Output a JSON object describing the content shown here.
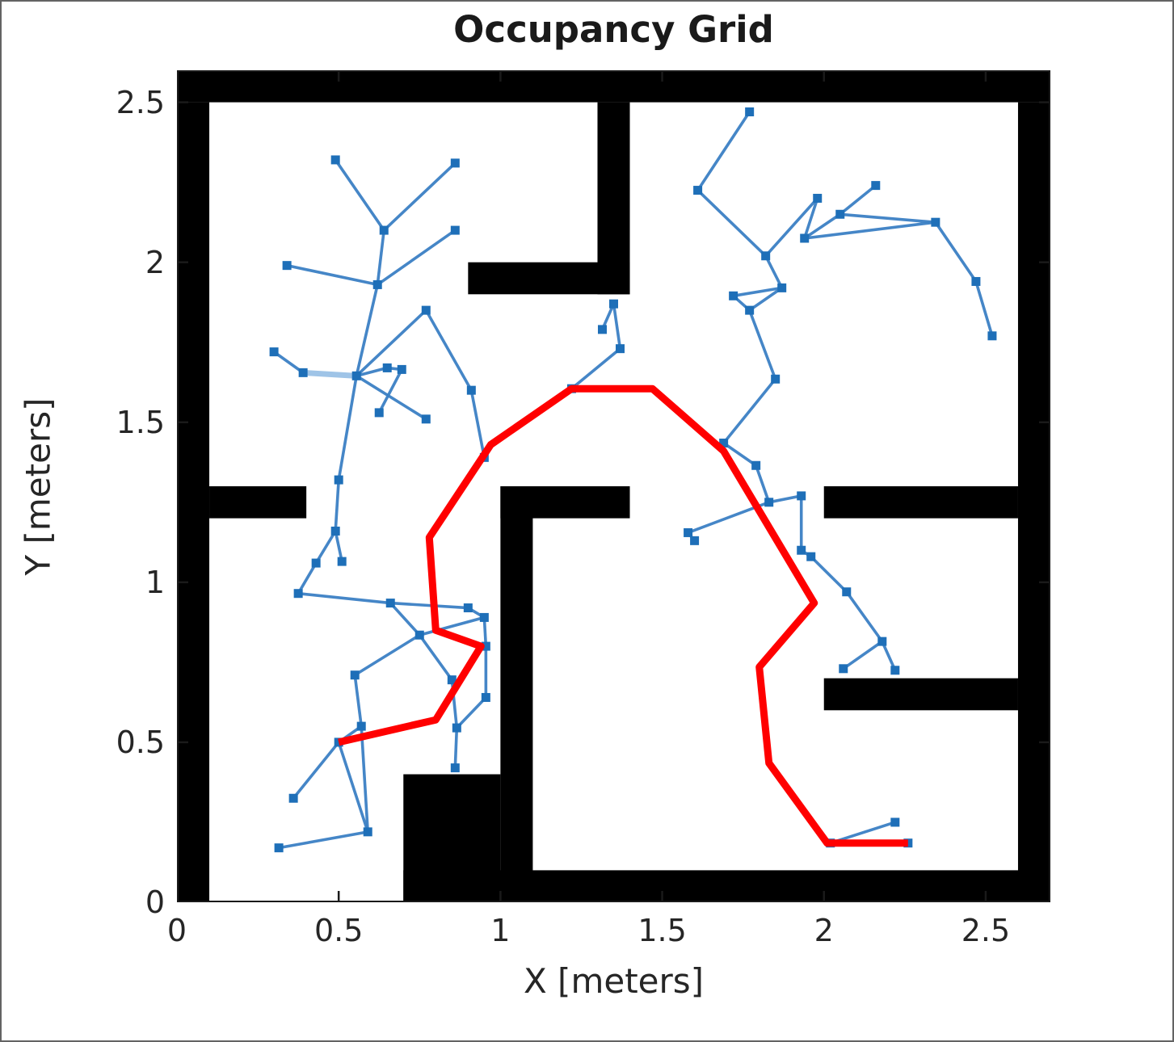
{
  "title": "Occupancy Grid",
  "xlabel": "X [meters]",
  "ylabel": "Y [meters]",
  "chart_data": {
    "type": "scatter",
    "subtype": "occupancy-grid-with-rrt-tree-and-path",
    "title": "Occupancy Grid",
    "xlabel": "X [meters]",
    "ylabel": "Y [meters]",
    "xlim": [
      0,
      2.7
    ],
    "ylim": [
      0,
      2.6
    ],
    "x_ticks": [
      0,
      0.5,
      1,
      1.5,
      2,
      2.5
    ],
    "x_tick_labels": [
      "0",
      "0.5",
      "1",
      "1.5",
      "2",
      "2.5"
    ],
    "y_ticks": [
      0,
      0.5,
      1,
      1.5,
      2,
      2.5
    ],
    "y_tick_labels": [
      "0",
      "0.5",
      "1",
      "1.5",
      "2",
      "2.5"
    ],
    "grid": false,
    "legend": "none",
    "colors": {
      "wall": "#000000",
      "background": "#ffffff",
      "tree_edge": "#3b80c4",
      "tree_edge_light": "#9fc4e7",
      "tree_marker": "#1e6fb8",
      "path": "#ff0000",
      "axis_text": "#262626",
      "axis_box": "#1a1a1a"
    },
    "walls_rect_xywh_meters": [
      [
        0.0,
        2.5,
        2.7,
        0.1
      ],
      [
        0.0,
        0.0,
        0.1,
        2.5
      ],
      [
        2.6,
        0.0,
        0.1,
        2.5
      ],
      [
        0.7,
        0.0,
        2.0,
        0.1
      ],
      [
        0.7,
        0.0,
        0.3,
        0.4
      ],
      [
        1.0,
        0.0,
        0.1,
        1.3
      ],
      [
        1.0,
        1.2,
        0.4,
        0.1
      ],
      [
        1.3,
        1.9,
        0.1,
        0.6
      ],
      [
        0.9,
        1.9,
        0.5,
        0.1
      ],
      [
        0.1,
        1.2,
        0.3,
        0.1
      ],
      [
        2.0,
        1.2,
        0.6,
        0.1
      ],
      [
        2.0,
        0.6,
        0.6,
        0.1
      ]
    ],
    "tree_nodes_xy_meters": [
      [
        0.49,
        2.32
      ],
      [
        0.86,
        2.31
      ],
      [
        0.64,
        2.1
      ],
      [
        0.86,
        2.1
      ],
      [
        0.34,
        1.99
      ],
      [
        0.62,
        1.93
      ],
      [
        0.77,
        1.85
      ],
      [
        0.3,
        1.72
      ],
      [
        0.39,
        1.655
      ],
      [
        0.555,
        1.645
      ],
      [
        0.65,
        1.67
      ],
      [
        0.695,
        1.665
      ],
      [
        0.91,
        1.6
      ],
      [
        0.625,
        1.53
      ],
      [
        0.77,
        1.51
      ],
      [
        0.5,
        1.32
      ],
      [
        0.95,
        1.39
      ],
      [
        1.35,
        1.87
      ],
      [
        1.315,
        1.79
      ],
      [
        1.37,
        1.73
      ],
      [
        1.22,
        1.605
      ],
      [
        0.49,
        1.16
      ],
      [
        0.43,
        1.06
      ],
      [
        0.51,
        1.065
      ],
      [
        0.375,
        0.965
      ],
      [
        0.66,
        0.935
      ],
      [
        0.9,
        0.92
      ],
      [
        0.95,
        0.89
      ],
      [
        0.75,
        0.835
      ],
      [
        0.955,
        0.8
      ],
      [
        0.955,
        0.64
      ],
      [
        0.85,
        0.695
      ],
      [
        0.55,
        0.71
      ],
      [
        0.865,
        0.545
      ],
      [
        0.86,
        0.42
      ],
      [
        0.57,
        0.55
      ],
      [
        0.5,
        0.5
      ],
      [
        0.36,
        0.325
      ],
      [
        0.59,
        0.22
      ],
      [
        0.315,
        0.17
      ],
      [
        1.77,
        2.47
      ],
      [
        1.61,
        2.225
      ],
      [
        1.82,
        2.02
      ],
      [
        1.98,
        2.2
      ],
      [
        2.05,
        2.15
      ],
      [
        2.16,
        2.24
      ],
      [
        1.94,
        2.075
      ],
      [
        1.87,
        1.92
      ],
      [
        2.345,
        2.125
      ],
      [
        2.47,
        1.94
      ],
      [
        2.52,
        1.77
      ],
      [
        1.72,
        1.895
      ],
      [
        1.77,
        1.85
      ],
      [
        1.85,
        1.635
      ],
      [
        1.69,
        1.435
      ],
      [
        1.79,
        1.365
      ],
      [
        1.83,
        1.25
      ],
      [
        1.93,
        1.27
      ],
      [
        1.58,
        1.155
      ],
      [
        1.6,
        1.13
      ],
      [
        1.93,
        1.1
      ],
      [
        1.96,
        1.08
      ],
      [
        2.07,
        0.97
      ],
      [
        2.18,
        0.815
      ],
      [
        2.06,
        0.73
      ],
      [
        2.22,
        0.725
      ],
      [
        2.22,
        0.25
      ],
      [
        2.02,
        0.185
      ],
      [
        2.26,
        0.185
      ]
    ],
    "tree_edges_node_indices": [
      [
        0,
        2
      ],
      [
        1,
        2
      ],
      [
        2,
        5
      ],
      [
        3,
        5
      ],
      [
        4,
        5
      ],
      [
        5,
        9
      ],
      [
        6,
        9
      ],
      [
        6,
        12
      ],
      [
        12,
        16
      ],
      [
        7,
        8
      ],
      [
        9,
        10
      ],
      [
        10,
        11
      ],
      [
        9,
        14
      ],
      [
        11,
        13
      ],
      [
        9,
        15
      ],
      [
        17,
        18
      ],
      [
        17,
        19
      ],
      [
        19,
        20
      ],
      [
        15,
        21
      ],
      [
        21,
        22
      ],
      [
        21,
        23
      ],
      [
        22,
        24
      ],
      [
        24,
        25
      ],
      [
        25,
        26
      ],
      [
        25,
        28
      ],
      [
        28,
        27
      ],
      [
        26,
        27
      ],
      [
        27,
        29
      ],
      [
        29,
        30
      ],
      [
        30,
        33
      ],
      [
        33,
        34
      ],
      [
        28,
        31
      ],
      [
        31,
        33
      ],
      [
        28,
        32
      ],
      [
        32,
        35
      ],
      [
        35,
        36
      ],
      [
        35,
        38
      ],
      [
        36,
        37
      ],
      [
        36,
        38
      ],
      [
        38,
        39
      ],
      [
        40,
        41
      ],
      [
        41,
        42
      ],
      [
        42,
        43
      ],
      [
        43,
        46
      ],
      [
        46,
        44
      ],
      [
        44,
        45
      ],
      [
        44,
        48
      ],
      [
        46,
        48
      ],
      [
        48,
        49
      ],
      [
        49,
        50
      ],
      [
        42,
        47
      ],
      [
        47,
        51
      ],
      [
        47,
        52
      ],
      [
        51,
        52
      ],
      [
        52,
        53
      ],
      [
        53,
        54
      ],
      [
        54,
        55
      ],
      [
        55,
        56
      ],
      [
        56,
        57
      ],
      [
        56,
        58
      ],
      [
        58,
        59
      ],
      [
        57,
        60
      ],
      [
        60,
        61
      ],
      [
        61,
        62
      ],
      [
        62,
        63
      ],
      [
        63,
        64
      ],
      [
        63,
        65
      ],
      [
        66,
        67
      ],
      [
        67,
        68
      ]
    ],
    "tree_light_edges_node_indices": [
      [
        8,
        9
      ]
    ],
    "path_xy_meters": [
      [
        0.5,
        0.5
      ],
      [
        0.8,
        0.57
      ],
      [
        0.94,
        0.8
      ],
      [
        0.8,
        0.85
      ],
      [
        0.78,
        1.14
      ],
      [
        0.97,
        1.43
      ],
      [
        1.22,
        1.605
      ],
      [
        1.47,
        1.605
      ],
      [
        1.69,
        1.41
      ],
      [
        1.97,
        0.935
      ],
      [
        1.8,
        0.735
      ],
      [
        1.83,
        0.435
      ],
      [
        2.01,
        0.185
      ],
      [
        2.26,
        0.185
      ]
    ],
    "path_start_meters": [
      0.5,
      0.5
    ],
    "path_goal_meters": [
      2.26,
      0.185
    ]
  }
}
